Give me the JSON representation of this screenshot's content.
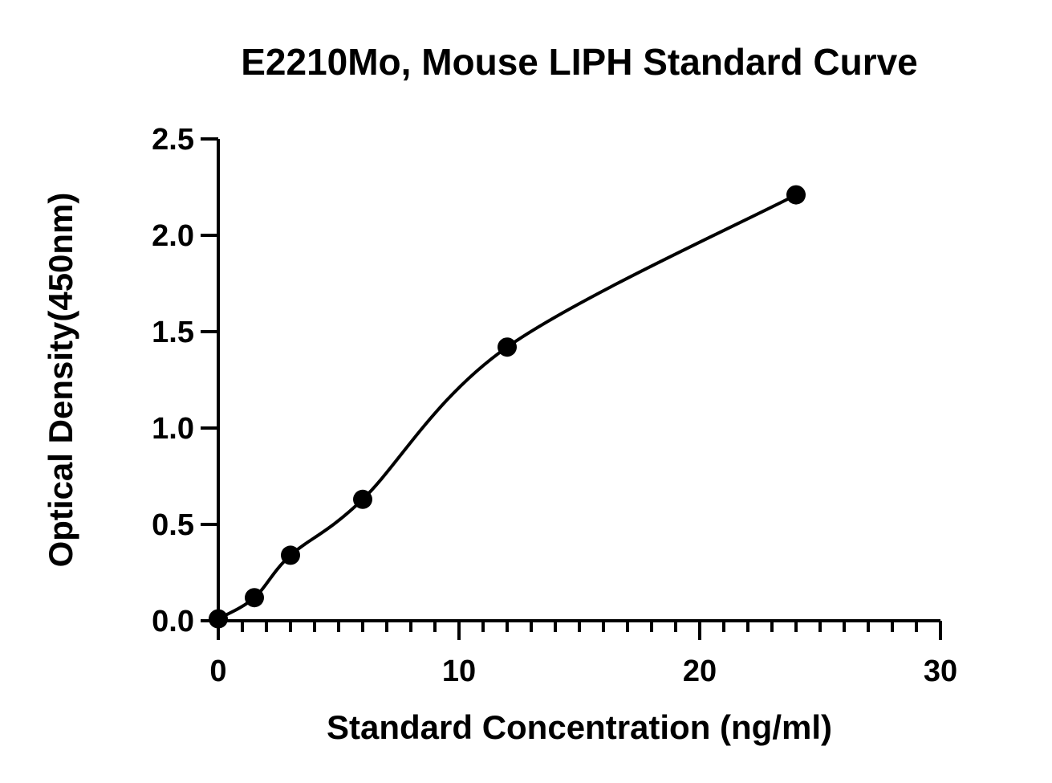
{
  "chart_data": {
    "type": "scatter",
    "title": "E2210Mo, Mouse LIPH Standard Curve",
    "xlabel": "Standard Concentration (ng/ml)",
    "ylabel": "Optical Density(450nm)",
    "xlim": [
      0,
      30
    ],
    "ylim": [
      0,
      2.5
    ],
    "x_ticks": [
      "0",
      "10",
      "20",
      "30"
    ],
    "y_ticks": [
      "0.0",
      "0.5",
      "1.0",
      "1.5",
      "2.0",
      "2.5"
    ],
    "grid": false,
    "legend": "none",
    "series": [
      {
        "x": [
          0,
          1.5,
          3,
          6,
          12,
          24
        ],
        "y": [
          0.01,
          0.12,
          0.34,
          0.63,
          1.42,
          2.21
        ],
        "fit": "four-parameter logistic curve"
      }
    ],
    "colors": {
      "marks": "#000000",
      "background": "#ffffff"
    }
  }
}
